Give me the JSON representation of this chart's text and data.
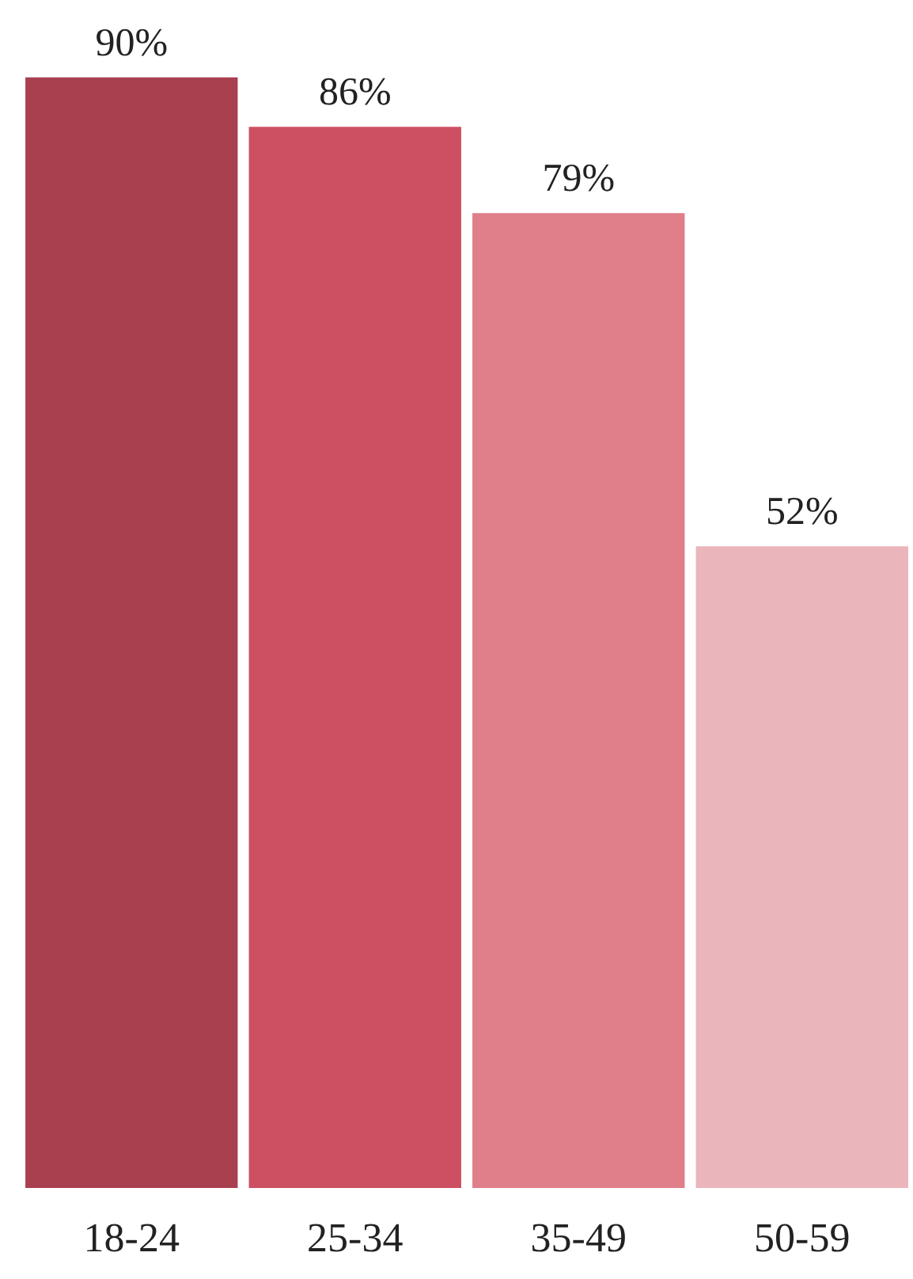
{
  "chart_data": {
    "type": "bar",
    "categories": [
      "18-24",
      "25-34",
      "35-49",
      "50-59"
    ],
    "values": [
      90,
      86,
      79,
      52
    ],
    "colors": [
      "#a84050",
      "#cc4f62",
      "#e07e8a",
      "#eab5bb"
    ],
    "value_labels": [
      "90%",
      "86%",
      "79%",
      "52%"
    ],
    "grid": false
  }
}
